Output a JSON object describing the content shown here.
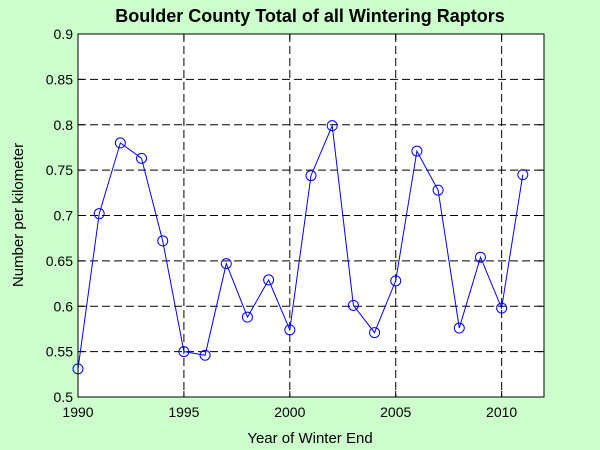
{
  "chart_data": {
    "type": "line",
    "title": "Boulder County Total of all Wintering Raptors",
    "xlabel": "Year of Winter End",
    "ylabel": "Number per kilometer",
    "xlim": [
      1990,
      2012
    ],
    "ylim": [
      0.5,
      0.9
    ],
    "xticks": [
      "1990",
      "1995",
      "2000",
      "2005",
      "2010"
    ],
    "xtick_values": [
      1990,
      1995,
      2000,
      2005,
      2010
    ],
    "yticks": [
      "0.5",
      "0.55",
      "0.6",
      "0.65",
      "0.7",
      "0.75",
      "0.8",
      "0.85",
      "0.9"
    ],
    "ytick_values": [
      0.5,
      0.55,
      0.6,
      0.65,
      0.7,
      0.75,
      0.8,
      0.85,
      0.9
    ],
    "grid": true,
    "series": [
      {
        "x": [
          1990,
          1991,
          1992,
          1993,
          1994,
          1995,
          1996,
          1997,
          1998,
          1999,
          2000,
          2001,
          2002,
          2003,
          2004,
          2005,
          2006,
          2007,
          2008,
          2009,
          2010,
          2011
        ],
        "values": [
          0.531,
          0.702,
          0.78,
          0.763,
          0.672,
          0.55,
          0.546,
          0.647,
          0.588,
          0.629,
          0.574,
          0.744,
          0.799,
          0.601,
          0.571,
          0.628,
          0.771,
          0.728,
          0.576,
          0.654,
          0.598,
          0.745
        ],
        "color": "#0000ff",
        "marker": "circle"
      }
    ]
  },
  "colors": {
    "background": "#ccffcc",
    "plot_area": "#ffffff",
    "series": "#0000ff"
  }
}
